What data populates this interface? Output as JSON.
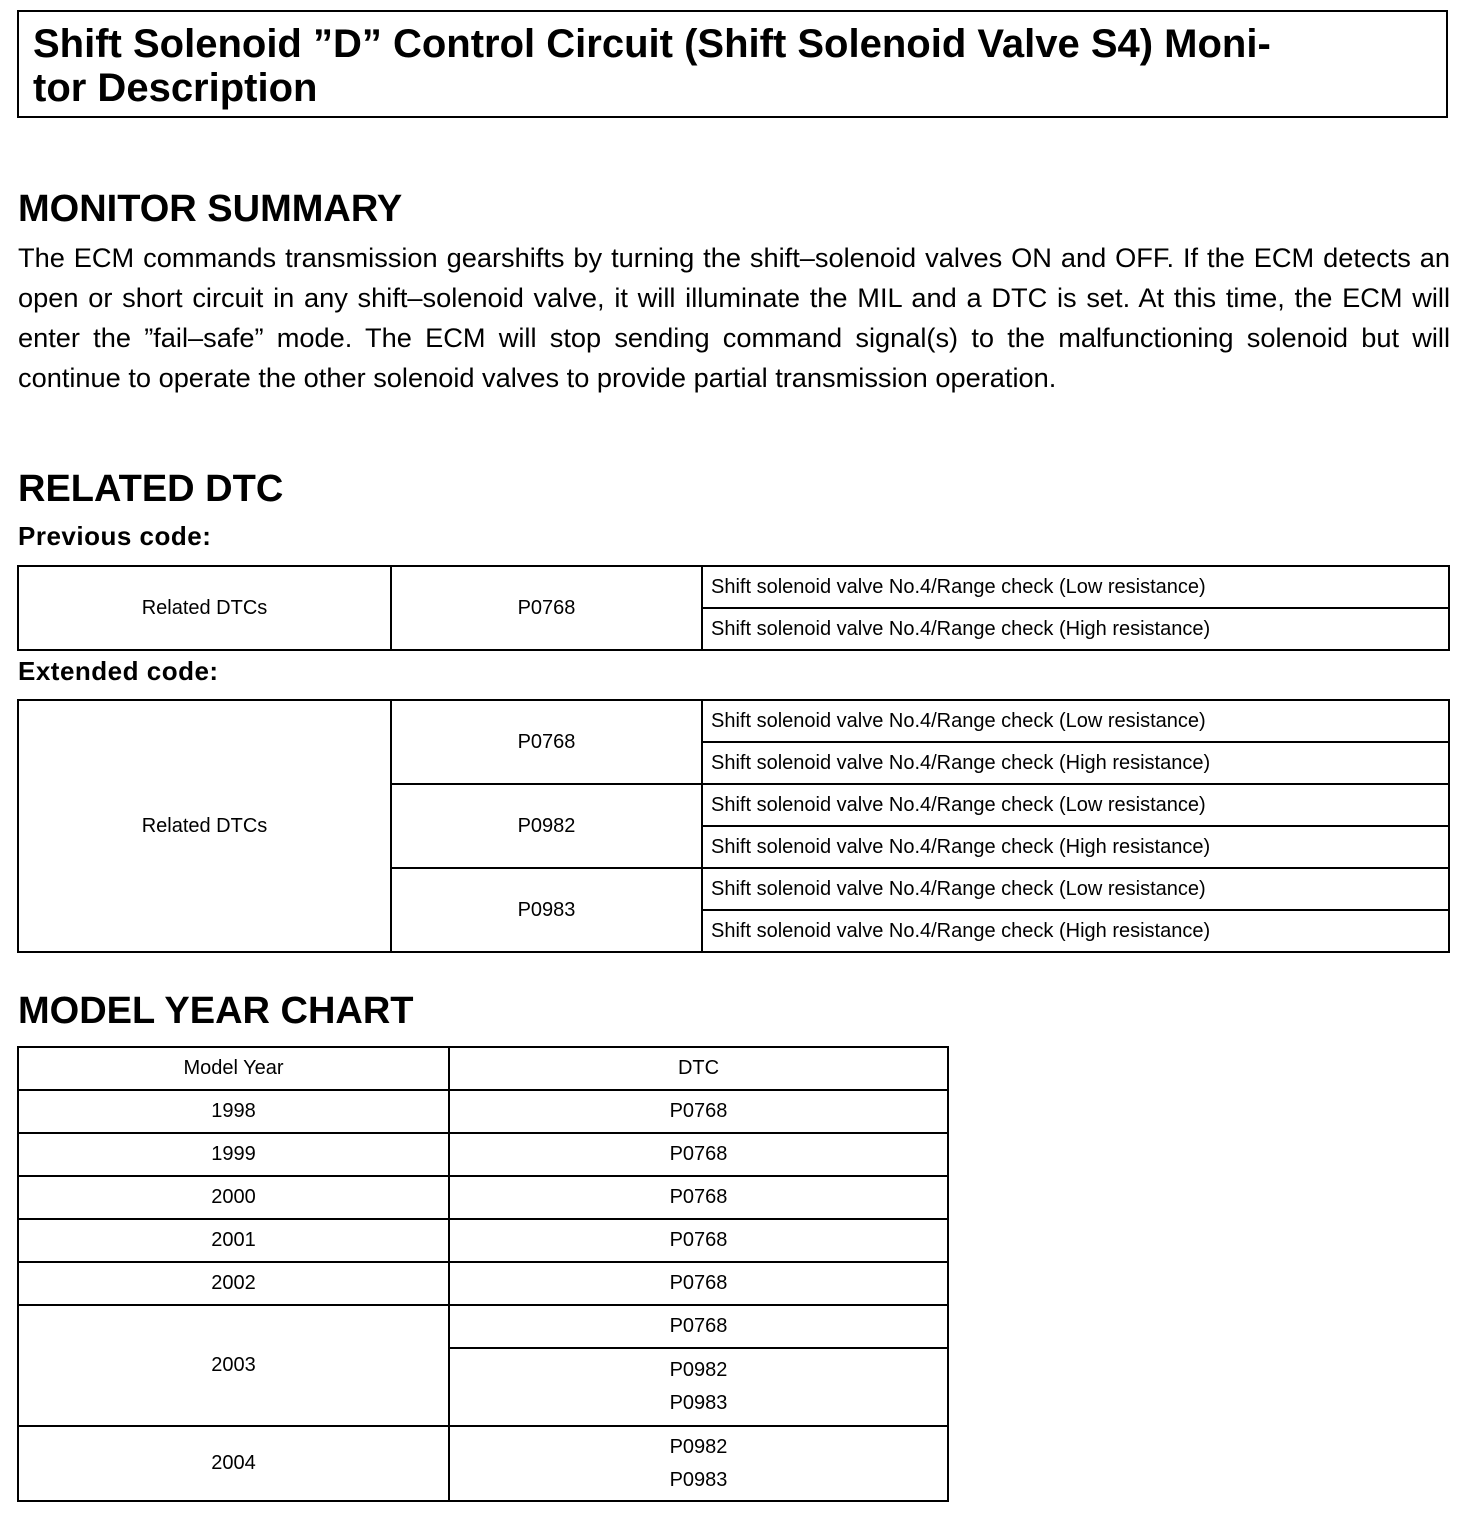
{
  "title": "Shift Solenoid ”D” Control Circuit (Shift Solenoid Valve S4) Monitor Description",
  "title_lines": [
    "Shift Solenoid ”D” Control Circuit (Shift Solenoid Valve S4) Moni-",
    "tor Description"
  ],
  "monitor_summary": {
    "heading": "MONITOR SUMMARY",
    "text": "The ECM commands transmission gearshifts by turning the shift–solenoid valves ON and OFF. If the ECM detects an open or short circuit in any shift–solenoid valve, it will illuminate the MIL and a DTC is set. At this time, the ECM will enter the ”fail–safe” mode. The ECM will stop sending command signal(s) to the malfunctioning solenoid but will continue to operate the other solenoid valves to provide partial transmission operation."
  },
  "related_dtc": {
    "heading": "RELATED DTC",
    "previous_label": "Previous code:",
    "previous": {
      "label": "Related DTCs",
      "code": "P0768",
      "descriptions": [
        "Shift solenoid valve No.4/Range check (Low resistance)",
        "Shift solenoid valve No.4/Range check (High resistance)"
      ]
    },
    "extended_label": "Extended code:",
    "extended": {
      "label": "Related DTCs",
      "groups": [
        {
          "code": "P0768",
          "descriptions": [
            "Shift solenoid valve No.4/Range check (Low resistance)",
            "Shift solenoid valve No.4/Range check (High resistance)"
          ]
        },
        {
          "code": "P0982",
          "descriptions": [
            "Shift solenoid valve No.4/Range check (Low resistance)",
            "Shift solenoid valve No.4/Range check (High resistance)"
          ]
        },
        {
          "code": "P0983",
          "descriptions": [
            "Shift solenoid valve No.4/Range check (Low resistance)",
            "Shift solenoid valve No.4/Range check (High resistance)"
          ]
        }
      ]
    }
  },
  "model_year_chart": {
    "heading": "MODEL YEAR CHART",
    "headers": [
      "Model Year",
      "DTC"
    ],
    "rows": [
      {
        "year": "1998",
        "dtc": "P0768"
      },
      {
        "year": "1999",
        "dtc": "P0768"
      },
      {
        "year": "2000",
        "dtc": "P0768"
      },
      {
        "year": "2001",
        "dtc": "P0768"
      },
      {
        "year": "2002",
        "dtc": "P0768"
      },
      {
        "year": "2003",
        "dtc": [
          "P0768",
          "P0982",
          "P0983"
        ]
      },
      {
        "year": "2004",
        "dtc": [
          "P0982",
          "P0983"
        ]
      }
    ]
  }
}
